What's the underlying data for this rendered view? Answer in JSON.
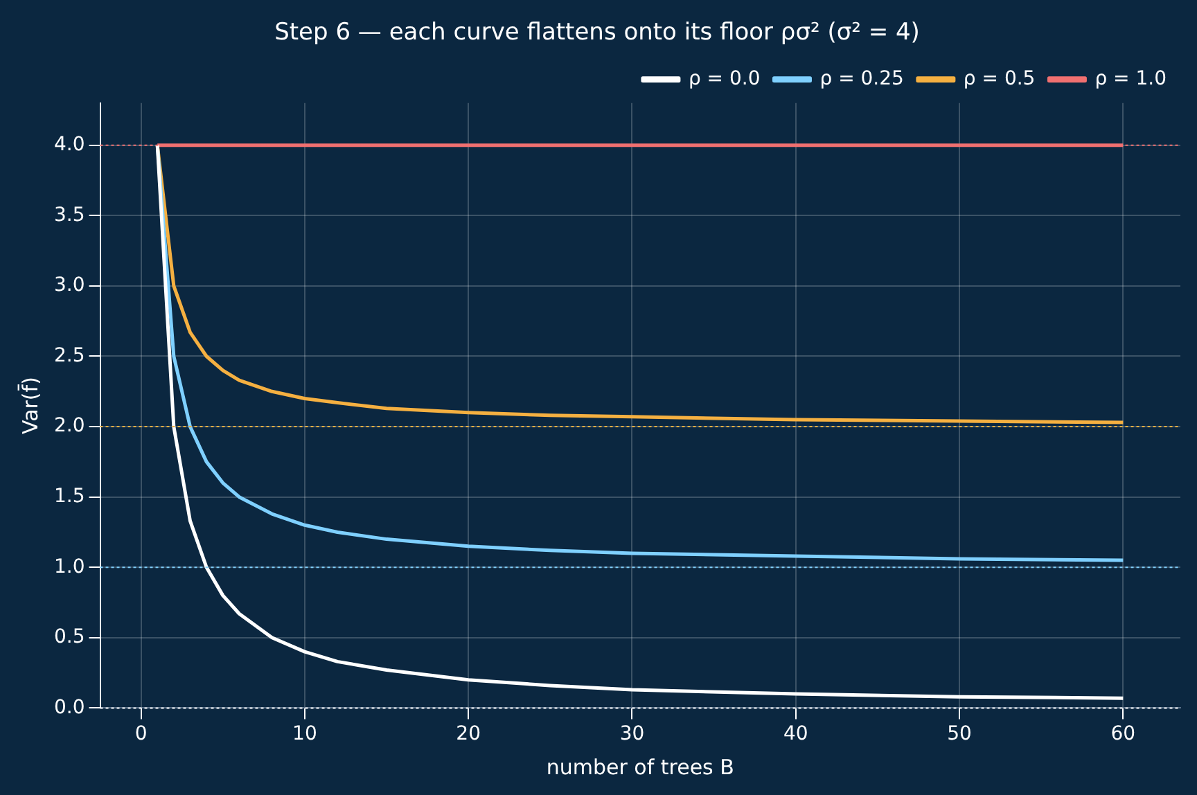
{
  "chart_data": {
    "type": "line",
    "title": "Step 6 — each curve flattens onto its floor ρσ² (σ² = 4)",
    "xlabel": "number of trees B",
    "ylabel": "Var(f̄)",
    "x": [
      1,
      2,
      3,
      4,
      5,
      6,
      8,
      10,
      12,
      15,
      20,
      25,
      30,
      40,
      50,
      60
    ],
    "series": [
      {
        "name": "ρ = 0.0",
        "color": "#ffffff",
        "values": [
          4,
          2,
          1.33,
          1,
          0.8,
          0.67,
          0.5,
          0.4,
          0.33,
          0.27,
          0.2,
          0.16,
          0.13,
          0.1,
          0.08,
          0.07
        ]
      },
      {
        "name": "ρ = 0.25",
        "color": "#7fd0ff",
        "values": [
          4,
          2.5,
          2,
          1.75,
          1.6,
          1.5,
          1.38,
          1.3,
          1.25,
          1.2,
          1.15,
          1.12,
          1.1,
          1.08,
          1.06,
          1.05
        ]
      },
      {
        "name": "ρ = 0.5",
        "color": "#f5b041",
        "values": [
          4,
          3,
          2.67,
          2.5,
          2.4,
          2.33,
          2.25,
          2.2,
          2.17,
          2.13,
          2.1,
          2.08,
          2.07,
          2.05,
          2.04,
          2.03
        ]
      },
      {
        "name": "ρ = 1.0",
        "color": "#f07070",
        "values": [
          4,
          4,
          4,
          4,
          4,
          4,
          4,
          4,
          4,
          4,
          4,
          4,
          4,
          4,
          4,
          4
        ]
      }
    ],
    "ref_lines": [
      {
        "axis": "y",
        "value": 0,
        "color": "#ffffff",
        "line_style": "dotted"
      },
      {
        "axis": "y",
        "value": 1,
        "color": "#7fd0ff",
        "line_style": "dotted"
      },
      {
        "axis": "y",
        "value": 2,
        "color": "#f5b041",
        "line_style": "dotted"
      },
      {
        "axis": "y",
        "value": 4,
        "color": "#f07070",
        "line_style": "dotted"
      }
    ],
    "xlim": [
      -2.5,
      63.5
    ],
    "xticks": [
      0,
      10,
      20,
      30,
      40,
      50,
      60
    ],
    "ylim": [
      0,
      4.3
    ],
    "yticks": [
      {
        "value": 0,
        "label": "0.0"
      },
      {
        "value": 0.5,
        "label": "0.5"
      },
      {
        "value": 1,
        "label": "1.0"
      },
      {
        "value": 1.5,
        "label": "1.5"
      },
      {
        "value": 2,
        "label": "2.0"
      },
      {
        "value": 2.5,
        "label": "2.5"
      },
      {
        "value": 3,
        "label": "3.0"
      },
      {
        "value": 3.5,
        "label": "3.5"
      },
      {
        "value": 4,
        "label": "4.0"
      }
    ],
    "grid": true,
    "legend": "top right",
    "marker": "none",
    "line_style": "solid"
  }
}
